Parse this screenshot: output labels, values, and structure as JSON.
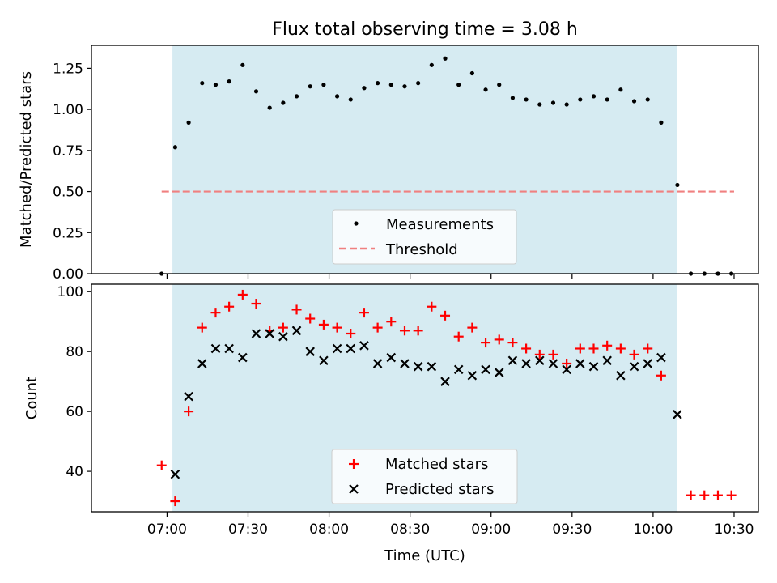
{
  "title": "Flux total observing time = 3.08 h",
  "colors": {
    "shade": "#add8e6",
    "measurement": "#000000",
    "threshold": "#f08080",
    "matched": "#ff0000",
    "predicted": "#000000"
  },
  "chart_data": [
    {
      "type": "scatter",
      "ylabel": "Matched/Predicted stars",
      "x_range_minutes": [
        392,
        639
      ],
      "ylim": [
        0,
        1.39
      ],
      "yticks": [
        "0.00",
        "0.25",
        "0.50",
        "0.75",
        "1.00",
        "1.25"
      ],
      "ytick_values": [
        0,
        0.25,
        0.5,
        0.75,
        1.0,
        1.25
      ],
      "observing_window": [
        "07:02",
        "10:09"
      ],
      "threshold": {
        "label": "Threshold",
        "value": 0.5,
        "x": [
          "06:58",
          "10:30"
        ]
      },
      "legend": {
        "position": "lower center",
        "entries": [
          "Measurements",
          "Threshold"
        ]
      },
      "series": [
        {
          "name": "Measurements",
          "marker": "dot",
          "x": [
            "06:58",
            "07:03",
            "07:08",
            "07:13",
            "07:18",
            "07:23",
            "07:28",
            "07:33",
            "07:38",
            "07:43",
            "07:48",
            "07:53",
            "07:58",
            "08:03",
            "08:08",
            "08:13",
            "08:18",
            "08:23",
            "08:28",
            "08:33",
            "08:38",
            "08:43",
            "08:48",
            "08:53",
            "08:58",
            "09:03",
            "09:08",
            "09:13",
            "09:18",
            "09:23",
            "09:28",
            "09:33",
            "09:38",
            "09:43",
            "09:48",
            "09:53",
            "09:58",
            "10:03",
            "10:09",
            "10:14",
            "10:19",
            "10:24",
            "10:29"
          ],
          "y": [
            0.0,
            0.77,
            0.92,
            1.16,
            1.15,
            1.17,
            1.27,
            1.11,
            1.01,
            1.04,
            1.08,
            1.14,
            1.15,
            1.08,
            1.06,
            1.13,
            1.16,
            1.15,
            1.14,
            1.16,
            1.27,
            1.31,
            1.15,
            1.22,
            1.12,
            1.15,
            1.07,
            1.06,
            1.03,
            1.04,
            1.03,
            1.06,
            1.08,
            1.06,
            1.12,
            1.05,
            1.06,
            0.92,
            0.54,
            0.0,
            0.0,
            0.0,
            0.0
          ]
        }
      ]
    },
    {
      "type": "scatter",
      "ylabel": "Count",
      "xlabel": "Time (UTC)",
      "x_range_minutes": [
        392,
        639
      ],
      "xticks": [
        "07:00",
        "07:30",
        "08:00",
        "08:30",
        "09:00",
        "09:30",
        "10:00",
        "10:30"
      ],
      "xtick_minutes": [
        420,
        450,
        480,
        510,
        540,
        570,
        600,
        630
      ],
      "ylim": [
        26.5,
        102.5
      ],
      "yticks": [
        "40",
        "60",
        "80",
        "100"
      ],
      "ytick_values": [
        40,
        60,
        80,
        100
      ],
      "observing_window": [
        "07:02",
        "10:09"
      ],
      "legend": {
        "position": "lower center",
        "entries": [
          "Matched stars",
          "Predicted stars"
        ]
      },
      "series": [
        {
          "name": "Matched stars",
          "marker": "plus",
          "x": [
            "06:58",
            "07:03",
            "07:08",
            "07:13",
            "07:18",
            "07:23",
            "07:28",
            "07:33",
            "07:38",
            "07:43",
            "07:48",
            "07:53",
            "07:58",
            "08:03",
            "08:08",
            "08:13",
            "08:18",
            "08:23",
            "08:28",
            "08:33",
            "08:38",
            "08:43",
            "08:48",
            "08:53",
            "08:58",
            "09:03",
            "09:08",
            "09:13",
            "09:18",
            "09:23",
            "09:28",
            "09:33",
            "09:38",
            "09:43",
            "09:48",
            "09:53",
            "09:58",
            "10:03",
            "10:14",
            "10:19",
            "10:24",
            "10:29"
          ],
          "y": [
            42,
            30,
            60,
            88,
            93,
            95,
            99,
            96,
            87,
            88,
            94,
            91,
            89,
            88,
            86,
            93,
            88,
            90,
            87,
            87,
            95,
            92,
            85,
            88,
            83,
            84,
            83,
            81,
            79,
            79,
            76,
            81,
            81,
            82,
            81,
            79,
            81,
            72,
            32,
            32,
            32,
            32
          ]
        },
        {
          "name": "Predicted stars",
          "marker": "x",
          "x": [
            "07:03",
            "07:08",
            "07:13",
            "07:18",
            "07:23",
            "07:28",
            "07:33",
            "07:38",
            "07:43",
            "07:48",
            "07:53",
            "07:58",
            "08:03",
            "08:08",
            "08:13",
            "08:18",
            "08:23",
            "08:28",
            "08:33",
            "08:38",
            "08:43",
            "08:48",
            "08:53",
            "08:58",
            "09:03",
            "09:08",
            "09:13",
            "09:18",
            "09:23",
            "09:28",
            "09:33",
            "09:38",
            "09:43",
            "09:48",
            "09:53",
            "09:58",
            "10:03",
            "10:09"
          ],
          "y": [
            39,
            65,
            76,
            81,
            81,
            78,
            86,
            86,
            85,
            87,
            80,
            77,
            81,
            81,
            82,
            76,
            78,
            76,
            75,
            75,
            70,
            74,
            72,
            74,
            73,
            77,
            76,
            77,
            76,
            74,
            76,
            75,
            77,
            72,
            75,
            76,
            78,
            59
          ]
        }
      ]
    }
  ]
}
